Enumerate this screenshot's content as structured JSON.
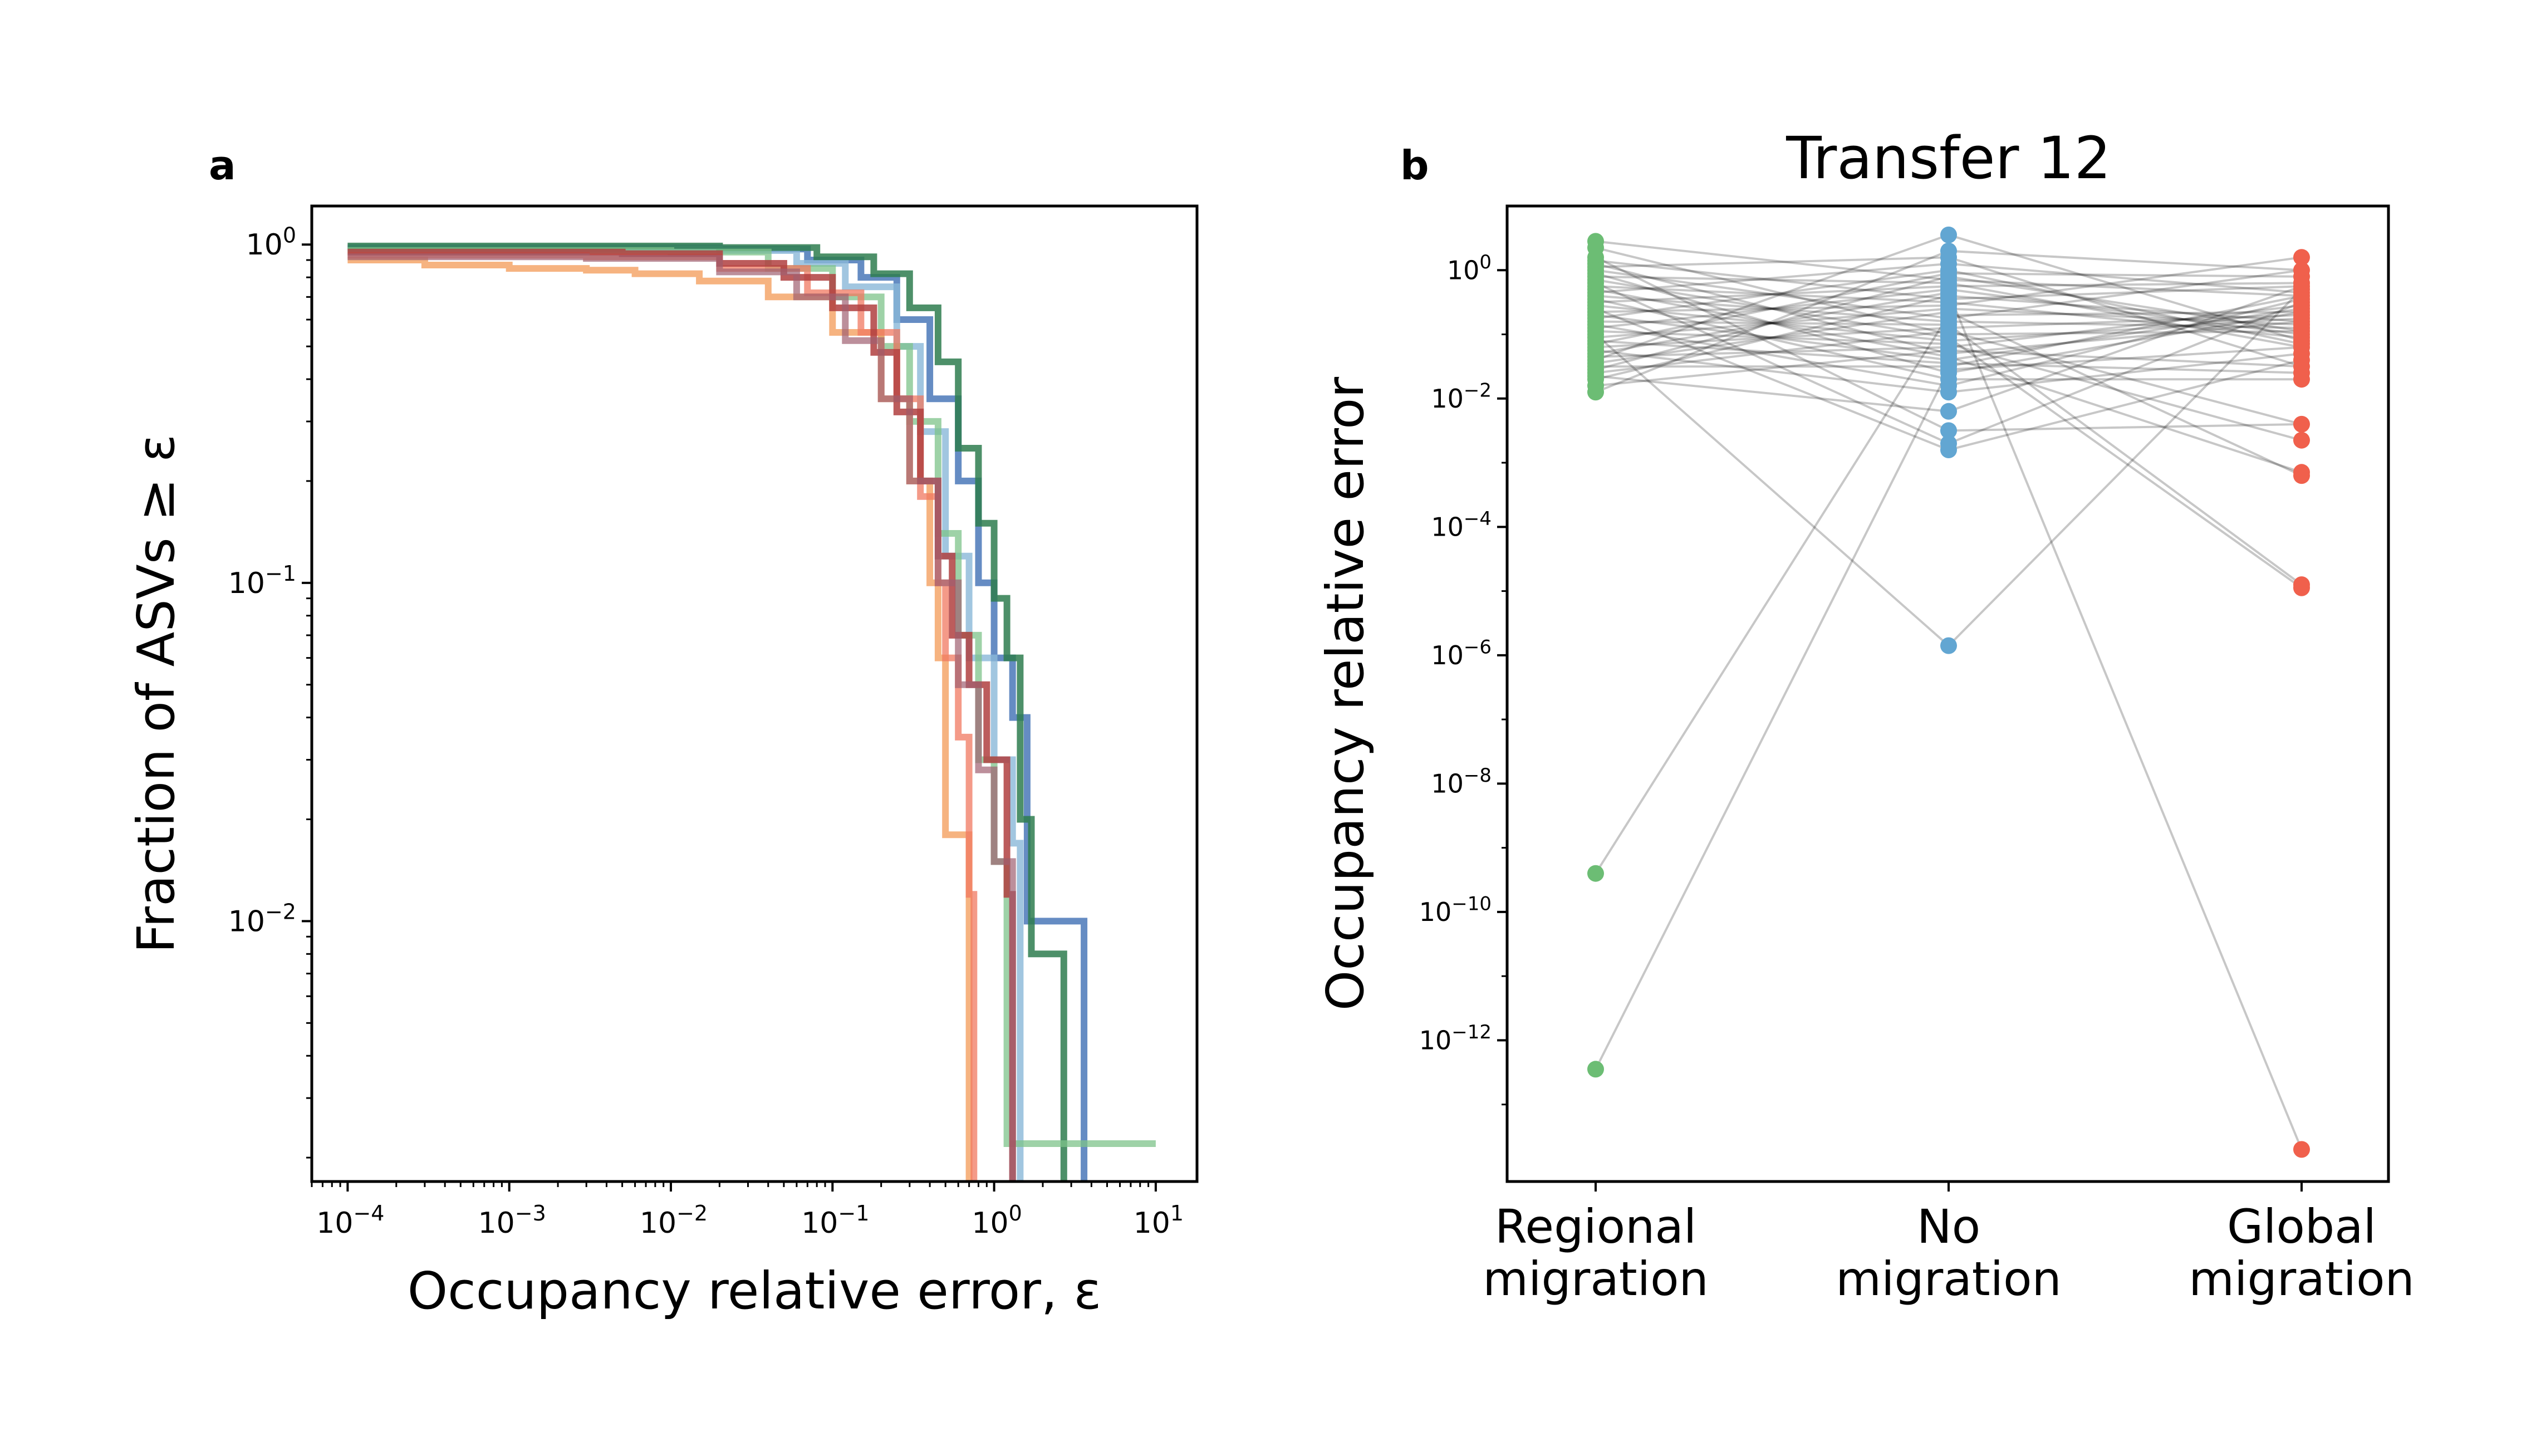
{
  "figure": {
    "panel_a_letter": "a",
    "panel_b_letter": "b"
  },
  "chart_data": [
    {
      "type": "line",
      "panel": "a",
      "title": "",
      "xlabel": "Occupancy relative error, ε",
      "ylabel": "Fraction of ASVs ≥ ε",
      "x_scale": "log",
      "y_scale": "log",
      "xlim": [
        6e-05,
        18
      ],
      "ylim": [
        0.0017,
        1.3
      ],
      "x_ticks": [
        {
          "value": 0.0001,
          "base": "10",
          "exp": "−4"
        },
        {
          "value": 0.001,
          "base": "10",
          "exp": "−3"
        },
        {
          "value": 0.01,
          "base": "10",
          "exp": "−2"
        },
        {
          "value": 0.1,
          "base": "10",
          "exp": "−1"
        },
        {
          "value": 1,
          "base": "10",
          "exp": "0"
        },
        {
          "value": 10,
          "base": "10",
          "exp": "1"
        }
      ],
      "y_ticks": [
        {
          "value": 1,
          "base": "10",
          "exp": "0"
        },
        {
          "value": 0.1,
          "base": "10",
          "exp": "−1"
        },
        {
          "value": 0.01,
          "base": "10",
          "exp": "−2"
        }
      ],
      "grid": false,
      "legend": "none",
      "series": [
        {
          "color": "#4a78b8",
          "opacity": 0.85,
          "points": [
            [
              0.0001,
              0.98
            ],
            [
              0.02,
              0.97
            ],
            [
              0.07,
              0.9
            ],
            [
              0.15,
              0.8
            ],
            [
              0.25,
              0.6
            ],
            [
              0.4,
              0.35
            ],
            [
              0.6,
              0.2
            ],
            [
              0.8,
              0.1
            ],
            [
              1.0,
              0.06
            ],
            [
              1.3,
              0.04
            ],
            [
              1.6,
              0.01
            ],
            [
              3.6,
              0.01
            ],
            [
              3.6,
              0.0017
            ]
          ]
        },
        {
          "color": "#8ab8d8",
          "opacity": 0.8,
          "points": [
            [
              0.0001,
              0.97
            ],
            [
              0.02,
              0.96
            ],
            [
              0.06,
              0.88
            ],
            [
              0.12,
              0.75
            ],
            [
              0.25,
              0.5
            ],
            [
              0.35,
              0.28
            ],
            [
              0.5,
              0.12
            ],
            [
              0.7,
              0.06
            ],
            [
              1.0,
              0.03
            ],
            [
              1.3,
              0.017
            ],
            [
              1.45,
              0.0017
            ]
          ]
        },
        {
          "color": "#2e7d4f",
          "opacity": 0.85,
          "points": [
            [
              0.0001,
              0.99
            ],
            [
              0.02,
              0.98
            ],
            [
              0.08,
              0.92
            ],
            [
              0.18,
              0.82
            ],
            [
              0.3,
              0.65
            ],
            [
              0.45,
              0.45
            ],
            [
              0.6,
              0.25
            ],
            [
              0.8,
              0.15
            ],
            [
              1.0,
              0.09
            ],
            [
              1.2,
              0.06
            ],
            [
              1.45,
              0.02
            ],
            [
              1.7,
              0.008
            ],
            [
              2.7,
              0.008
            ],
            [
              2.7,
              0.0017
            ]
          ]
        },
        {
          "color": "#7dc38a",
          "opacity": 0.75,
          "points": [
            [
              0.0001,
              0.96
            ],
            [
              0.01,
              0.95
            ],
            [
              0.04,
              0.85
            ],
            [
              0.1,
              0.7
            ],
            [
              0.2,
              0.5
            ],
            [
              0.3,
              0.3
            ],
            [
              0.45,
              0.14
            ],
            [
              0.6,
              0.07
            ],
            [
              0.8,
              0.03
            ],
            [
              1.0,
              0.015
            ],
            [
              1.2,
              0.0022
            ],
            [
              10,
              0.0022
            ]
          ]
        },
        {
          "color": "#f4a060",
          "opacity": 0.8,
          "points": [
            [
              0.0001,
              0.9
            ],
            [
              0.0003,
              0.87
            ],
            [
              0.001,
              0.85
            ],
            [
              0.003,
              0.84
            ],
            [
              0.006,
              0.82
            ],
            [
              0.015,
              0.78
            ],
            [
              0.04,
              0.7
            ],
            [
              0.1,
              0.55
            ],
            [
              0.2,
              0.35
            ],
            [
              0.3,
              0.2
            ],
            [
              0.4,
              0.1
            ],
            [
              0.45,
              0.06
            ],
            [
              0.5,
              0.018
            ],
            [
              0.65,
              0.018
            ],
            [
              0.7,
              0.0017
            ]
          ]
        },
        {
          "color": "#f07860",
          "opacity": 0.75,
          "points": [
            [
              0.0001,
              0.93
            ],
            [
              0.003,
              0.92
            ],
            [
              0.02,
              0.85
            ],
            [
              0.07,
              0.72
            ],
            [
              0.15,
              0.55
            ],
            [
              0.25,
              0.35
            ],
            [
              0.35,
              0.18
            ],
            [
              0.45,
              0.1
            ],
            [
              0.5,
              0.06
            ],
            [
              0.6,
              0.035
            ],
            [
              0.7,
              0.012
            ],
            [
              0.75,
              0.0017
            ]
          ]
        },
        {
          "color": "#b04040",
          "opacity": 0.85,
          "points": [
            [
              0.0001,
              0.95
            ],
            [
              0.005,
              0.94
            ],
            [
              0.02,
              0.88
            ],
            [
              0.05,
              0.8
            ],
            [
              0.1,
              0.65
            ],
            [
              0.18,
              0.48
            ],
            [
              0.25,
              0.32
            ],
            [
              0.35,
              0.2
            ],
            [
              0.45,
              0.12
            ],
            [
              0.55,
              0.07
            ],
            [
              0.7,
              0.05
            ],
            [
              0.9,
              0.03
            ],
            [
              1.2,
              0.012
            ],
            [
              1.3,
              0.0017
            ]
          ]
        },
        {
          "color": "#a06070",
          "opacity": 0.7,
          "points": [
            [
              0.0001,
              0.92
            ],
            [
              0.003,
              0.91
            ],
            [
              0.02,
              0.83
            ],
            [
              0.06,
              0.7
            ],
            [
              0.12,
              0.52
            ],
            [
              0.2,
              0.35
            ],
            [
              0.3,
              0.2
            ],
            [
              0.45,
              0.1
            ],
            [
              0.6,
              0.05
            ],
            [
              0.8,
              0.028
            ],
            [
              1.0,
              0.015
            ],
            [
              1.3,
              0.0017
            ]
          ]
        }
      ]
    },
    {
      "type": "scatter",
      "panel": "b",
      "title": "Transfer 12",
      "xlabel": "",
      "ylabel": "Occupancy relative error",
      "y_scale": "log",
      "ylim_exp": [
        -14.2,
        1.0
      ],
      "categories": [
        "Regional migration",
        "No migration",
        "Global migration"
      ],
      "category_lines": [
        [
          "Regional",
          "migration"
        ],
        [
          "No",
          "migration"
        ],
        [
          "Global",
          "migration"
        ]
      ],
      "y_ticks": [
        {
          "value": 1,
          "base": "10",
          "exp": "0"
        },
        {
          "value": 0.01,
          "base": "10",
          "exp": "−2"
        },
        {
          "value": 0.0001,
          "base": "10",
          "exp": "−4"
        },
        {
          "value": 1e-06,
          "base": "10",
          "exp": "−6"
        },
        {
          "value": 1e-08,
          "base": "10",
          "exp": "−8"
        },
        {
          "value": 1e-10,
          "base": "10",
          "exp": "−10"
        },
        {
          "value": 1e-12,
          "base": "10",
          "exp": "−12"
        }
      ],
      "colors": [
        "#6cbd74",
        "#62a6d2",
        "#f0604c"
      ],
      "line_color": "#000000",
      "grid": false,
      "legend": "none",
      "series": [
        {
          "name": "Regional migration",
          "log10_values": [
            0.45,
            0.35,
            0.2,
            0.15,
            0.1,
            0.05,
            0.0,
            -0.05,
            -0.1,
            -0.15,
            -0.2,
            -0.25,
            -0.3,
            -0.35,
            -0.4,
            -0.45,
            -0.5,
            -0.55,
            -0.6,
            -0.65,
            -0.7,
            -0.75,
            -0.8,
            -0.85,
            -0.9,
            -0.95,
            -1.0,
            -1.05,
            -1.1,
            -1.15,
            -1.2,
            -1.25,
            -1.3,
            -1.35,
            -1.4,
            -1.45,
            -1.5,
            -1.55,
            -1.6,
            -1.65,
            -1.7,
            -1.8,
            -1.9,
            -9.4,
            -12.45
          ]
        },
        {
          "name": "No migration",
          "log10_values": [
            0.55,
            0.3,
            0.2,
            0.1,
            0.0,
            -0.05,
            -0.1,
            -0.15,
            -0.2,
            -0.25,
            -0.3,
            -0.35,
            -0.4,
            -0.45,
            -0.5,
            -0.55,
            -0.6,
            -0.65,
            -0.7,
            -0.75,
            -0.8,
            -0.85,
            -0.9,
            -0.95,
            -1.0,
            -1.05,
            -1.1,
            -1.15,
            -1.2,
            -1.25,
            -1.3,
            -1.35,
            -1.4,
            -1.45,
            -1.5,
            -1.55,
            -1.6,
            -1.7,
            -1.8,
            -1.9,
            -2.2,
            -2.5,
            -2.7,
            -2.8,
            -5.85
          ]
        },
        {
          "name": "Global migration",
          "log10_values": [
            0.2,
            0.0,
            -0.1,
            -0.2,
            -0.25,
            -0.3,
            -0.35,
            -0.4,
            -0.45,
            -0.5,
            -0.55,
            -0.6,
            -0.65,
            -0.7,
            -0.75,
            -0.8,
            -0.85,
            -0.9,
            -0.95,
            -1.0,
            -1.05,
            -1.1,
            -1.15,
            -1.2,
            -1.3,
            -1.4,
            -1.5,
            -1.6,
            -1.7,
            -2.4,
            -2.65,
            -3.15,
            -3.2,
            -4.9,
            -4.95,
            -13.7
          ]
        }
      ]
    }
  ]
}
